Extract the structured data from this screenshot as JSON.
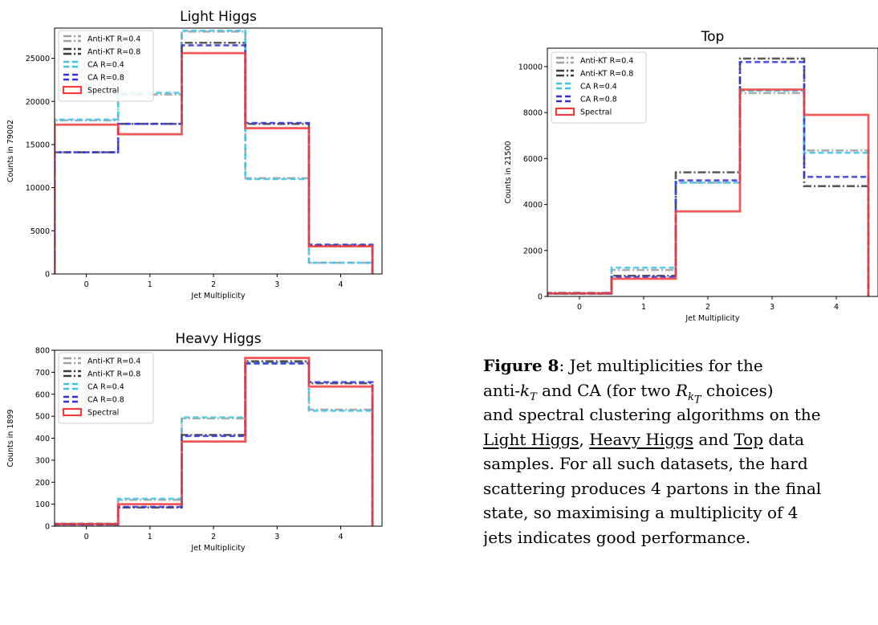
{
  "colors": {
    "Anti-KT R=0.4": "#a0a0a0",
    "Anti-KT R=0.8": "#3c3c3c",
    "CA R=0.4": "#3cc3e8",
    "CA R=0.8": "#3232dc",
    "Spectral": "#f03c3c"
  },
  "chart_data": [
    {
      "type": "bar",
      "title": "Light Higgs",
      "xlabel": "Jet Multiplicity",
      "ylabel": "Counts in 79002",
      "categories": [
        "0",
        "1",
        "2",
        "3",
        "4"
      ],
      "xlim": [
        -0.5,
        4.65
      ],
      "ylim": [
        0,
        28500
      ],
      "yticks": [
        0,
        5000,
        10000,
        15000,
        20000,
        25000
      ],
      "legend": "top-left",
      "series": [
        {
          "name": "Anti-KT R=0.4",
          "values": [
            17800,
            20800,
            28100,
            11100,
            1300
          ]
        },
        {
          "name": "Anti-KT R=0.8",
          "values": [
            14100,
            17400,
            26800,
            17400,
            3300
          ]
        },
        {
          "name": "CA R=0.4",
          "values": [
            17900,
            21000,
            28200,
            11000,
            1300
          ]
        },
        {
          "name": "CA R=0.8",
          "values": [
            14100,
            17400,
            26500,
            17500,
            3400
          ]
        },
        {
          "name": "Spectral",
          "values": [
            17300,
            16200,
            25600,
            16900,
            3200
          ]
        }
      ]
    },
    {
      "type": "bar",
      "title": "Top",
      "xlabel": "Jet Multiplicity",
      "ylabel": "Counts in 21500",
      "categories": [
        "0",
        "1",
        "2",
        "3",
        "4"
      ],
      "xlim": [
        -0.5,
        4.65
      ],
      "ylim": [
        0,
        10800
      ],
      "yticks": [
        0,
        2000,
        4000,
        6000,
        8000,
        10000
      ],
      "legend": "top-left",
      "series": [
        {
          "name": "Anti-KT R=0.4",
          "values": [
            120,
            1150,
            4950,
            8850,
            6350
          ]
        },
        {
          "name": "Anti-KT R=0.8",
          "values": [
            150,
            900,
            5400,
            10350,
            4800
          ]
        },
        {
          "name": "CA R=0.4",
          "values": [
            110,
            1250,
            4950,
            8950,
            6250
          ]
        },
        {
          "name": "CA R=0.8",
          "values": [
            130,
            850,
            5050,
            10200,
            5200
          ]
        },
        {
          "name": "Spectral",
          "values": [
            130,
            770,
            3700,
            9000,
            7900
          ]
        }
      ]
    },
    {
      "type": "bar",
      "title": "Heavy Higgs",
      "xlabel": "Jet Multiplicity",
      "ylabel": "Counts in 1899",
      "categories": [
        "0",
        "1",
        "2",
        "3",
        "4"
      ],
      "xlim": [
        -0.5,
        4.65
      ],
      "ylim": [
        0,
        800
      ],
      "yticks": [
        0,
        100,
        200,
        300,
        400,
        500,
        600,
        700,
        800
      ],
      "legend": "top-left",
      "series": [
        {
          "name": "Anti-KT R=0.4",
          "values": [
            10,
            120,
            490,
            745,
            530
          ]
        },
        {
          "name": "Anti-KT R=0.8",
          "values": [
            8,
            85,
            415,
            750,
            650
          ]
        },
        {
          "name": "CA R=0.4",
          "values": [
            12,
            125,
            495,
            740,
            525
          ]
        },
        {
          "name": "CA R=0.8",
          "values": [
            8,
            88,
            410,
            740,
            655
          ]
        },
        {
          "name": "Spectral",
          "values": [
            10,
            100,
            385,
            765,
            635
          ]
        }
      ]
    }
  ],
  "caption": {
    "figure_label": "Figure 8",
    "line1_text": ":  Jet multiplicities for the",
    "line2_a": "anti-",
    "line2_k": "k",
    "line2_kT": "T",
    "line2_b": " and CA (for two ",
    "line2_R": "R",
    "line2_Rk": "k",
    "line2_RkT": "T",
    "line2_c": " choices)",
    "line3": "and spectral clustering algorithms on the",
    "sample1": "Light Higgs",
    "sep1": ", ",
    "sample2": "Heavy Higgs",
    "sep2": " and ",
    "sample3": "Top",
    "line4_end": " data",
    "line5": "samples.  For all such datasets, the hard",
    "line6": "scattering produces 4 partons in the final",
    "line7": "state, so maximising a multiplicity of 4",
    "line8": "jets indicates good performance."
  }
}
